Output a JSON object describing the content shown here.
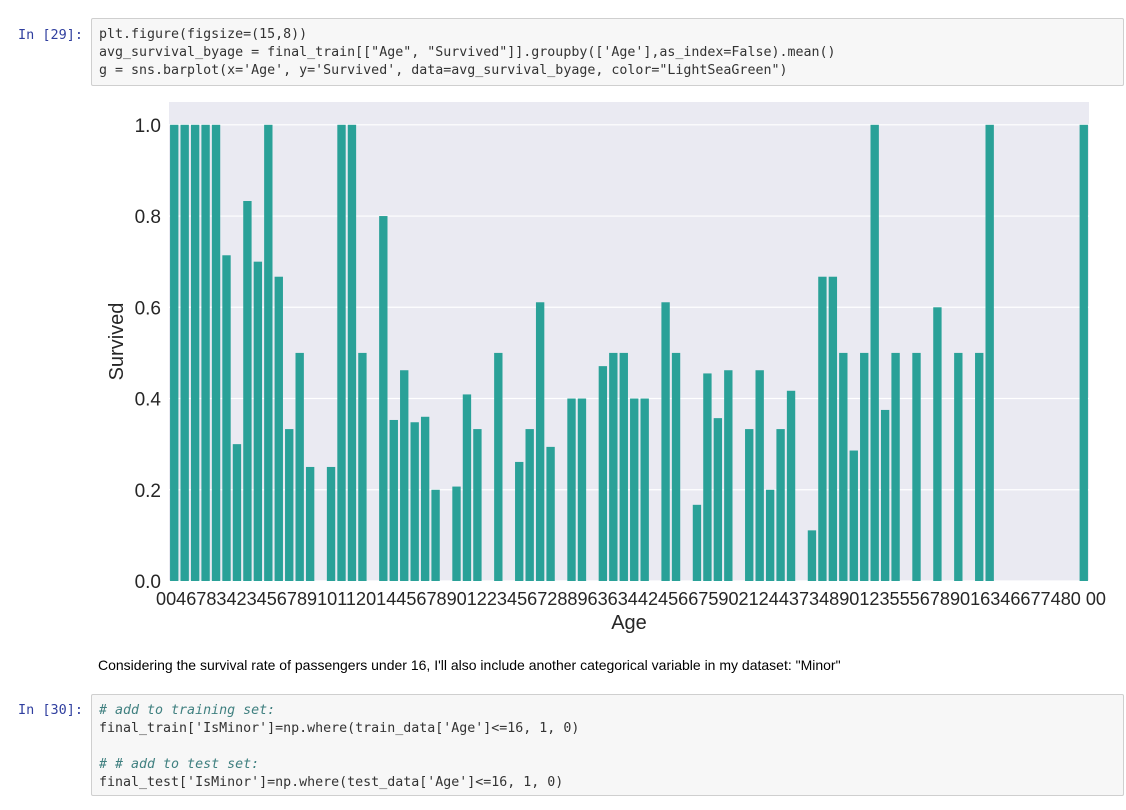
{
  "cell29": {
    "prompt": "In [29]:",
    "lines": [
      "plt.figure(figsize=(15,8))",
      "avg_survival_byage = final_train[[\"Age\", \"Survived\"]].groupby(['Age'],as_index=False).mean()",
      "g = sns.barplot(x='Age', y='Survived', data=avg_survival_byage, color=\"LightSeaGreen\")"
    ]
  },
  "markdown": {
    "text": "Considering the survival rate of passengers under 16, I'll also include another categorical variable in my dataset: \"Minor\""
  },
  "cell30": {
    "prompt": "In [30]:",
    "lines": [
      "# add to training set:",
      "final_train['IsMinor']=np.where(train_data['Age']<=16, 1, 0)",
      "",
      "# # add to test set:",
      "final_test['IsMinor']=np.where(test_data['Age']<=16, 1, 0)"
    ]
  },
  "colors": {
    "bar": "#2aa198",
    "plot_bg": "#eaeaf2",
    "grid": "#ffffff"
  },
  "chart_data": {
    "type": "bar",
    "xlabel": "Age",
    "ylabel": "Survived",
    "ylim": [
      0,
      1.05
    ],
    "yticks": [
      "0.0",
      "0.2",
      "0.4",
      "0.6",
      "0.8",
      "1.0"
    ],
    "xtick_label_overlap": "00467834234567891011201445678901223456728896363442456675902124437348901235556789016346677480 00",
    "grid": true,
    "values": [
      1.0,
      1.0,
      1.0,
      1.0,
      1.0,
      0.714,
      0.3,
      0.833,
      0.7,
      1.0,
      0.667,
      0.333,
      0.5,
      0.25,
      0,
      0.25,
      1.0,
      1.0,
      0.5,
      0,
      0.8,
      0.353,
      0.462,
      0.348,
      0.36,
      0.2,
      0,
      0.207,
      0.409,
      0.333,
      0,
      0.5,
      0,
      0.261,
      0.333,
      0.611,
      0.294,
      0,
      0.4,
      0.4,
      0,
      0.471,
      0.5,
      0.5,
      0.4,
      0.4,
      0,
      0.611,
      0.5,
      0,
      0.167,
      0.455,
      0.357,
      0.462,
      0,
      0.333,
      0.462,
      0.2,
      0.333,
      0.417,
      0,
      0.111,
      0.667,
      0.667,
      0.5,
      0.286,
      0.5,
      1.0,
      0.375,
      0.5,
      0,
      0.5,
      0,
      0.6,
      0,
      0.5,
      0,
      0.5,
      1.0,
      0,
      0,
      0,
      0,
      0,
      0,
      0,
      0,
      1.0
    ]
  }
}
